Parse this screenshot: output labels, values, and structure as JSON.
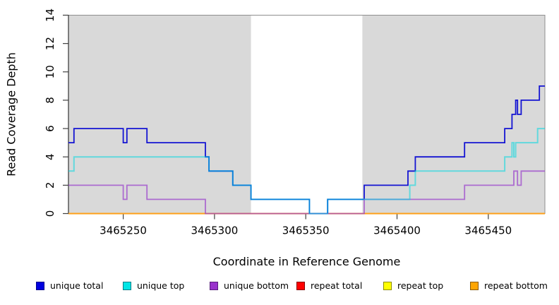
{
  "chart_data": {
    "type": "line",
    "subtype": "step-post-coverage",
    "title": "",
    "xlabel": "Coordinate in Reference Genome",
    "ylabel": "Read Coverage Depth",
    "xlim": [
      3465220,
      3465481
    ],
    "ylim": [
      0,
      14
    ],
    "x_ticks": [
      3465250,
      3465300,
      3465350,
      3465400,
      3465450
    ],
    "y_ticks": [
      0,
      2,
      4,
      6,
      8,
      10,
      12,
      14
    ],
    "grid": "off",
    "legend_position": "bottom",
    "background_bands": [
      {
        "x0": 3465220,
        "x1": 3465320,
        "color": "#d9d9d9"
      },
      {
        "x0": 3465381,
        "x1": 3465481,
        "color": "#d9d9d9"
      }
    ],
    "gap_region": {
      "x0": 3465320,
      "x1": 3465381,
      "color": "#ffffff"
    },
    "draw_order": [
      "repeat total",
      "repeat top",
      "repeat bottom",
      "unique total",
      "unique bottom",
      "unique top"
    ],
    "series": [
      {
        "name": "unique total",
        "line_color": "#1414d2",
        "line_opacity": 1,
        "line_width": 1.8,
        "legend_color": "#0000e0",
        "legend_edge": "#00008b",
        "points": [
          [
            3465220,
            5
          ],
          [
            3465223,
            6
          ],
          [
            3465250,
            5
          ],
          [
            3465252,
            6
          ],
          [
            3465263,
            5
          ],
          [
            3465295,
            4
          ],
          [
            3465297,
            3
          ],
          [
            3465310,
            2
          ],
          [
            3465320,
            1
          ],
          [
            3465352,
            0
          ],
          [
            3465362,
            1
          ],
          [
            3465382,
            2
          ],
          [
            3465406,
            3
          ],
          [
            3465410,
            4
          ],
          [
            3465437,
            5
          ],
          [
            3465459,
            6
          ],
          [
            3465463,
            7
          ],
          [
            3465465,
            8
          ],
          [
            3465466,
            7
          ],
          [
            3465468,
            8
          ],
          [
            3465478,
            9
          ],
          [
            3465481,
            9
          ]
        ]
      },
      {
        "name": "unique top",
        "line_color": "#00d8e0",
        "line_opacity": 0.55,
        "line_width": 2.0,
        "legend_color": "#00e5e5",
        "legend_edge": "#007d86",
        "points": [
          [
            3465220,
            3
          ],
          [
            3465223,
            4
          ],
          [
            3465297,
            3
          ],
          [
            3465310,
            2
          ],
          [
            3465320,
            1
          ],
          [
            3465352,
            0
          ],
          [
            3465362,
            1
          ],
          [
            3465407,
            2
          ],
          [
            3465410,
            3
          ],
          [
            3465459,
            4
          ],
          [
            3465463,
            5
          ],
          [
            3465464,
            4
          ],
          [
            3465465,
            5
          ],
          [
            3465477,
            6
          ],
          [
            3465481,
            6
          ]
        ]
      },
      {
        "name": "unique bottom",
        "line_color": "#993dcc",
        "line_opacity": 0.7,
        "line_width": 1.8,
        "legend_color": "#9932cc",
        "legend_edge": "#581e7d",
        "points": [
          [
            3465220,
            2
          ],
          [
            3465250,
            1
          ],
          [
            3465252,
            2
          ],
          [
            3465263,
            1
          ],
          [
            3465295,
            0
          ],
          [
            3465382,
            1
          ],
          [
            3465437,
            2
          ],
          [
            3465464,
            3
          ],
          [
            3465466,
            2
          ],
          [
            3465468,
            3
          ],
          [
            3465481,
            3
          ]
        ]
      },
      {
        "name": "repeat total",
        "line_color": "#e00000",
        "line_opacity": 1,
        "line_width": 1.8,
        "legend_color": "#ff0000",
        "legend_edge": "#870000",
        "points": [
          [
            3465220,
            0
          ],
          [
            3465481,
            0
          ]
        ]
      },
      {
        "name": "repeat top",
        "line_color": "#ffeb00",
        "line_opacity": 1,
        "line_width": 1.8,
        "legend_color": "#ffff00",
        "legend_edge": "#8c8c00",
        "points": [
          [
            3465220,
            0
          ],
          [
            3465481,
            0
          ]
        ]
      },
      {
        "name": "repeat bottom",
        "line_color": "#ff9e1a",
        "line_opacity": 1,
        "line_width": 1.8,
        "legend_color": "#ffa500",
        "legend_edge": "#8c5a00",
        "points": [
          [
            3465220,
            0
          ],
          [
            3465481,
            0
          ]
        ]
      }
    ]
  },
  "legend": {
    "items": [
      "unique total",
      "unique top",
      "unique bottom",
      "repeat total",
      "repeat top",
      "repeat bottom"
    ]
  }
}
